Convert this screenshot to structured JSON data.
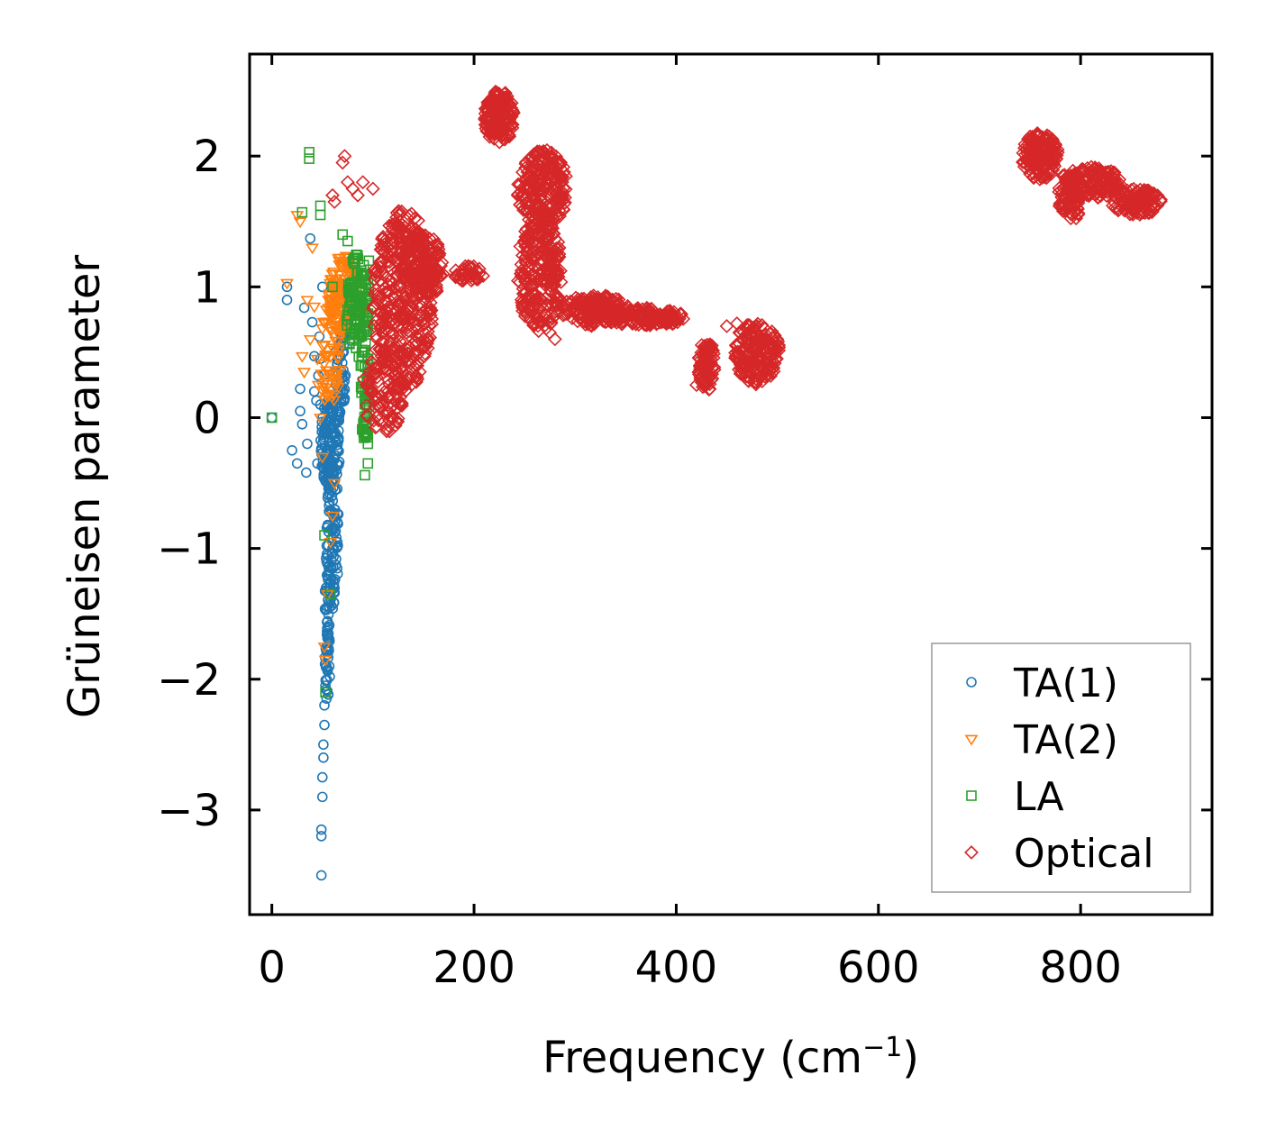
{
  "chart_data": {
    "type": "scatter",
    "title": "",
    "xlabel": "Frequency (cm",
    "xlabel_sup": "−1",
    "xlabel_close": ")",
    "ylabel": "Grüneisen parameter",
    "xlim": [
      -22,
      930
    ],
    "ylim": [
      -3.8,
      2.78
    ],
    "xticks": [
      0,
      200,
      400,
      600,
      800
    ],
    "xtick_labels": [
      "0",
      "200",
      "400",
      "600",
      "800"
    ],
    "yticks": [
      -3,
      -2,
      -1,
      0,
      1,
      2
    ],
    "ytick_labels": [
      "−3",
      "−2",
      "−1",
      "0",
      "1",
      "2"
    ],
    "legend_position": "lower-right",
    "series": [
      {
        "name": "TA(1)",
        "marker": "circle",
        "color": "#1f77b4",
        "points": [
          [
            0,
            0
          ],
          [
            15,
            1.0
          ],
          [
            15,
            0.9
          ],
          [
            20,
            -0.25
          ],
          [
            25,
            -0.35
          ],
          [
            28,
            0.22
          ],
          [
            28,
            0.05
          ],
          [
            30,
            -0.05
          ],
          [
            32,
            0.84
          ],
          [
            34,
            -0.42
          ],
          [
            35,
            -0.2
          ],
          [
            38,
            1.37
          ],
          [
            40,
            0.73
          ],
          [
            42,
            0.47
          ],
          [
            42,
            0.2
          ],
          [
            44,
            0.13
          ],
          [
            45,
            -0.35
          ],
          [
            46,
            0.32
          ],
          [
            47,
            0.62
          ],
          [
            48,
            0.1
          ],
          [
            49,
            -3.5
          ],
          [
            49,
            -3.2
          ],
          [
            49,
            -3.15
          ],
          [
            50,
            -2.9
          ],
          [
            50,
            -2.75
          ],
          [
            51,
            -2.6
          ],
          [
            51,
            -2.5
          ],
          [
            52,
            -2.35
          ],
          [
            52,
            -2.2
          ],
          [
            53,
            -2.05
          ],
          [
            54,
            -1.9
          ],
          [
            55,
            -1.75
          ],
          [
            56,
            -1.6
          ],
          [
            57,
            -1.45
          ],
          [
            58,
            -1.3
          ],
          [
            59,
            -1.15
          ],
          [
            60,
            -1.0
          ],
          [
            61,
            -0.85
          ],
          [
            62,
            -0.7
          ],
          [
            63,
            -0.55
          ],
          [
            64,
            -0.4
          ],
          [
            65,
            -0.25
          ],
          [
            66,
            -0.1
          ],
          [
            67,
            0.05
          ],
          [
            68,
            0.2
          ],
          [
            69,
            0.35
          ],
          [
            70,
            0.5
          ],
          [
            71,
            0.62
          ],
          [
            72,
            0.73
          ],
          [
            73,
            0.8
          ],
          [
            50,
            1.0
          ],
          [
            52,
            0.33
          ],
          [
            48,
            0.45
          ],
          [
            55,
            -0.1
          ],
          [
            60,
            0.1
          ],
          [
            57,
            -0.25
          ],
          [
            62,
            -0.15
          ]
        ],
        "blobs": [
          {
            "f": 58,
            "g": -0.2,
            "rf": 10,
            "rg": 0.35,
            "n": 140
          },
          {
            "f": 60,
            "g": -0.9,
            "rf": 6,
            "rg": 0.6,
            "n": 80
          },
          {
            "f": 55,
            "g": -1.6,
            "rf": 3,
            "rg": 0.6,
            "n": 60
          },
          {
            "f": 68,
            "g": 0.35,
            "rf": 5,
            "rg": 0.4,
            "n": 60
          }
        ]
      },
      {
        "name": "TA(2)",
        "marker": "triangle-down",
        "color": "#ff7f0e",
        "points": [
          [
            15,
            1.03
          ],
          [
            25,
            1.55
          ],
          [
            28,
            1.5
          ],
          [
            30,
            0.47
          ],
          [
            32,
            0.35
          ],
          [
            35,
            0.9
          ],
          [
            38,
            0.6
          ],
          [
            40,
            1.3
          ],
          [
            42,
            0.85
          ],
          [
            45,
            0.45
          ],
          [
            46,
            0.25
          ],
          [
            48,
            0.0
          ],
          [
            50,
            -0.3
          ],
          [
            52,
            -1.75
          ],
          [
            53,
            -1.85
          ],
          [
            55,
            -1.35
          ],
          [
            58,
            -0.95
          ],
          [
            60,
            -0.75
          ],
          [
            62,
            -0.5
          ],
          [
            70,
            0.65
          ],
          [
            75,
            1.2
          ],
          [
            80,
            1.1
          ],
          [
            85,
            0.9
          ],
          [
            90,
            0.8
          ]
        ],
        "blobs": [
          {
            "f": 70,
            "g": 0.95,
            "rf": 15,
            "rg": 0.3,
            "n": 140
          },
          {
            "f": 58,
            "g": 0.45,
            "rf": 10,
            "rg": 0.45,
            "n": 60
          }
        ]
      },
      {
        "name": "LA",
        "marker": "square",
        "color": "#2ca02c",
        "points": [
          [
            0,
            0
          ],
          [
            30,
            1.57
          ],
          [
            37,
            2.03
          ],
          [
            37,
            1.98
          ],
          [
            48,
            1.62
          ],
          [
            48,
            1.55
          ],
          [
            52,
            -0.9
          ],
          [
            53,
            -2.1
          ],
          [
            58,
            -1.35
          ],
          [
            60,
            1.0
          ],
          [
            70,
            1.4
          ],
          [
            75,
            1.35
          ],
          [
            80,
            1.2
          ],
          [
            92,
            -0.44
          ],
          [
            95,
            -0.35
          ],
          [
            95,
            -0.2
          ],
          [
            95,
            -0.15
          ],
          [
            92,
            0.5
          ],
          [
            96,
            1.2
          ]
        ],
        "blobs": [
          {
            "f": 85,
            "g": 0.85,
            "rf": 12,
            "rg": 0.4,
            "n": 130
          },
          {
            "f": 92,
            "g": 0.2,
            "rf": 5,
            "rg": 0.4,
            "n": 50
          }
        ]
      },
      {
        "name": "Optical",
        "marker": "diamond",
        "color": "#d62728",
        "points": [
          [
            70,
            1.95
          ],
          [
            72,
            2.0
          ],
          [
            75,
            1.8
          ],
          [
            80,
            1.75
          ],
          [
            85,
            1.7
          ],
          [
            90,
            1.8
          ],
          [
            100,
            1.75
          ],
          [
            60,
            1.7
          ],
          [
            62,
            1.65
          ],
          [
            280,
            0.6
          ],
          [
            275,
            0.65
          ],
          [
            450,
            0.7
          ],
          [
            460,
            0.72
          ],
          [
            420,
            0.25
          ]
        ],
        "blobs": [
          {
            "f": 130,
            "g": 0.9,
            "rf": 30,
            "rg": 0.7,
            "n": 420
          },
          {
            "f": 150,
            "g": 1.15,
            "rf": 20,
            "rg": 0.25,
            "n": 120
          },
          {
            "f": 110,
            "g": 0.2,
            "rf": 20,
            "rg": 0.35,
            "n": 100
          },
          {
            "f": 195,
            "g": 1.1,
            "rf": 15,
            "rg": 0.06,
            "n": 40
          },
          {
            "f": 225,
            "g": 2.3,
            "rf": 15,
            "rg": 0.2,
            "n": 160
          },
          {
            "f": 268,
            "g": 1.75,
            "rf": 25,
            "rg": 0.3,
            "n": 220
          },
          {
            "f": 265,
            "g": 1.1,
            "rf": 22,
            "rg": 0.45,
            "n": 260
          },
          {
            "f": 320,
            "g": 0.82,
            "rf": 35,
            "rg": 0.12,
            "n": 170
          },
          {
            "f": 370,
            "g": 0.77,
            "rf": 40,
            "rg": 0.07,
            "n": 140
          },
          {
            "f": 430,
            "g": 0.4,
            "rf": 8,
            "rg": 0.2,
            "n": 80
          },
          {
            "f": 480,
            "g": 0.5,
            "rf": 22,
            "rg": 0.25,
            "n": 180
          },
          {
            "f": 760,
            "g": 2.0,
            "rf": 18,
            "rg": 0.18,
            "n": 160
          },
          {
            "f": 790,
            "g": 1.7,
            "rf": 12,
            "rg": 0.2,
            "n": 90
          },
          {
            "f": 815,
            "g": 1.8,
            "rf": 25,
            "rg": 0.12,
            "n": 120
          },
          {
            "f": 855,
            "g": 1.65,
            "rf": 25,
            "rg": 0.1,
            "n": 120
          }
        ]
      }
    ]
  }
}
